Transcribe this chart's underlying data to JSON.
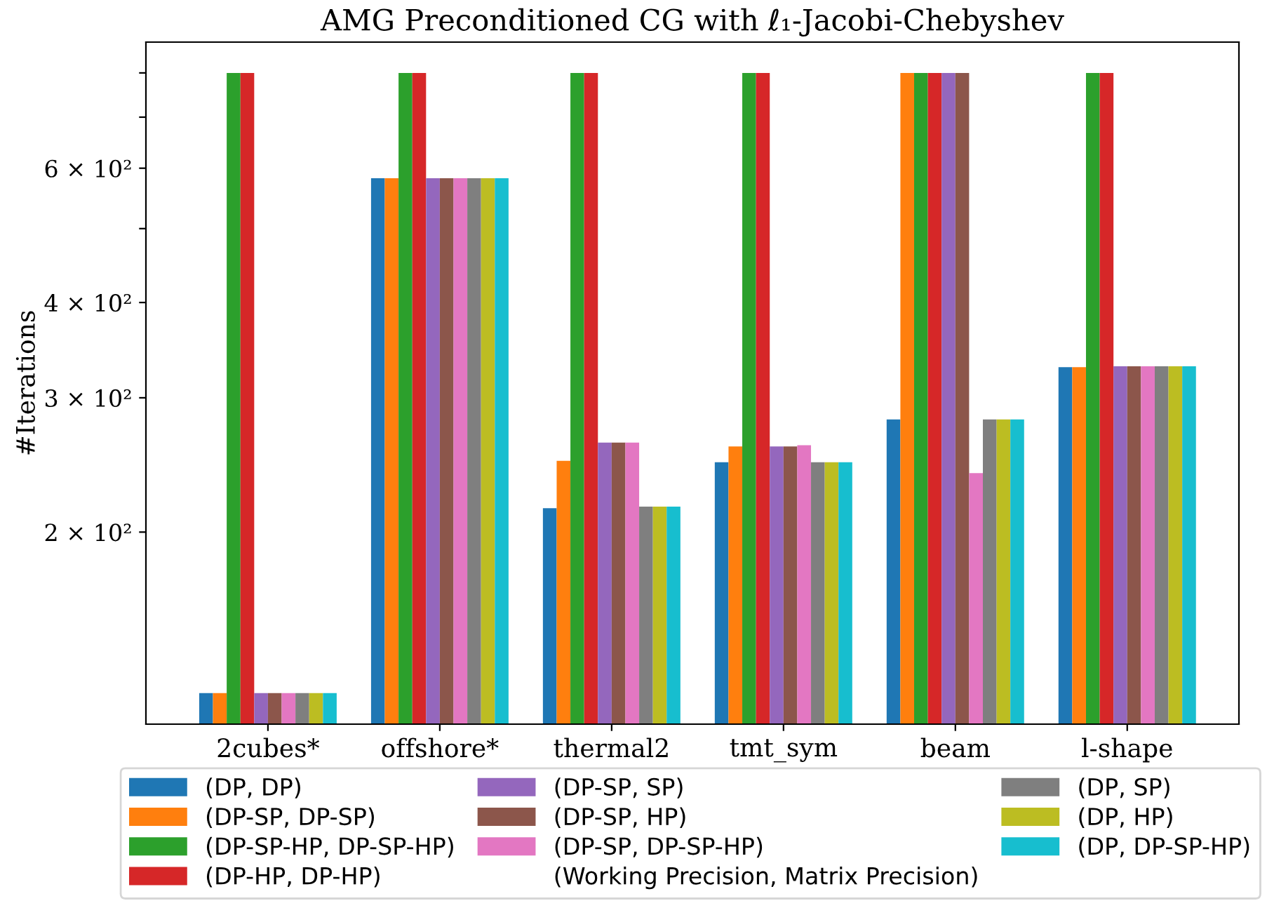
{
  "chart_data": {
    "type": "bar",
    "title": "AMG Preconditioned CG with ℓ₁-Jacobi-Chebyshev",
    "ylabel": "#Iterations",
    "legend_title": "(Working Precision, Matrix Precision)",
    "categories": [
      "2cubes*",
      "offshore*",
      "thermal2",
      "tmt_sym",
      "beam",
      "l-shape"
    ],
    "log": "y",
    "ylim": [
      112,
      878
    ],
    "yticks": [
      {
        "value": 200,
        "label": "2 × 10²"
      },
      {
        "value": 300,
        "label": "3 × 10²"
      },
      {
        "value": 400,
        "label": "4 × 10²"
      },
      {
        "value": 500,
        "label": null
      },
      {
        "value": 600,
        "label": "6 × 10²"
      },
      {
        "value": 700,
        "label": null
      },
      {
        "value": 800,
        "label": null
      }
    ],
    "grid": false,
    "legend": "bottom",
    "series": [
      {
        "name": "(DP, DP)",
        "color": "#1f77b4",
        "values": [
          123,
          582,
          215,
          247,
          281,
          329
        ]
      },
      {
        "name": "(DP-SP, DP-SP)",
        "color": "#ff7f0e",
        "values": [
          123,
          582,
          248,
          259,
          800,
          329
        ]
      },
      {
        "name": "(DP-SP-HP, DP-SP-HP)",
        "color": "#2ca02c",
        "values": [
          800,
          800,
          800,
          800,
          800,
          800
        ]
      },
      {
        "name": "(DP-HP, DP-HP)",
        "color": "#d62728",
        "values": [
          800,
          800,
          800,
          800,
          800,
          800
        ]
      },
      {
        "name": "(DP-SP, SP)",
        "color": "#9467bd",
        "values": [
          123,
          582,
          262,
          259,
          800,
          330
        ]
      },
      {
        "name": "(DP-SP, HP)",
        "color": "#8c564b",
        "values": [
          123,
          582,
          262,
          259,
          800,
          330
        ]
      },
      {
        "name": "(DP-SP, DP-SP-HP)",
        "color": "#e377c2",
        "values": [
          123,
          582,
          262,
          260,
          239,
          330
        ]
      },
      {
        "name": "(DP, SP)",
        "color": "#7f7f7f",
        "values": [
          123,
          582,
          216,
          247,
          281,
          330
        ]
      },
      {
        "name": "(DP, HP)",
        "color": "#bcbd22",
        "values": [
          123,
          582,
          216,
          247,
          281,
          330
        ]
      },
      {
        "name": "(DP, DP-SP-HP)",
        "color": "#17becf",
        "values": [
          123,
          582,
          216,
          247,
          281,
          330
        ]
      }
    ]
  }
}
